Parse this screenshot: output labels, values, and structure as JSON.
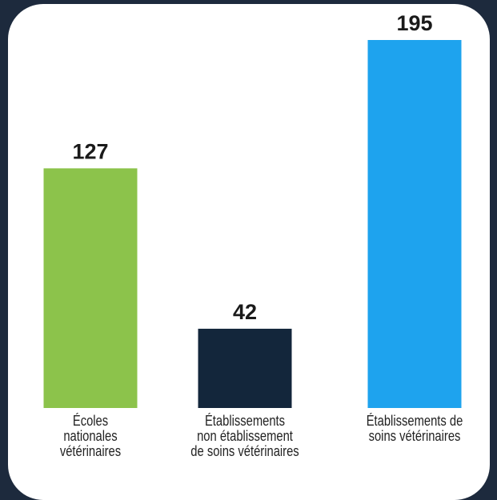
{
  "chart_data": {
    "type": "bar",
    "categories": [
      "Écoles\nnationales\nvétérinaires",
      "Établissements\nnon établissement\nde soins vétérinaires",
      "Établissements de\nsoins vétérinaires"
    ],
    "values": [
      127,
      42,
      195
    ],
    "colors": [
      "#8cc34b",
      "#13263b",
      "#1ea3ee"
    ]
  }
}
